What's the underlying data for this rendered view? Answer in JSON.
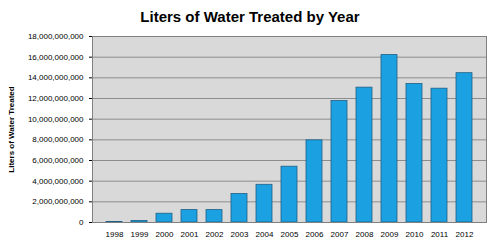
{
  "chart_data": {
    "type": "bar",
    "title": "Liters of Water Treated by Year",
    "y_label": "Liters of Water Treated",
    "categories": [
      "1998",
      "1999",
      "2000",
      "2001",
      "2002",
      "2003",
      "2004",
      "2005",
      "2006",
      "2007",
      "2008",
      "2009",
      "2010",
      "2011",
      "2012"
    ],
    "values": [
      50000000,
      150000000,
      850000000,
      1200000000,
      1200000000,
      2750000000,
      3650000000,
      5400000000,
      7950000000,
      11750000000,
      13050000000,
      16200000000,
      13400000000,
      12950000000,
      14450000000
    ],
    "color": "#1ba1e2",
    "ylim": [
      0,
      18000000000
    ],
    "yticks": [
      0,
      {
        "value": 2000000000,
        "label": "2,000,000,000"
      },
      {
        "value": 4000000000,
        "label": "4,000,000,000"
      },
      {
        "value": 6000000000,
        "label": "6,000,000,000"
      },
      {
        "value": 8000000000,
        "label": "8,000,000,000"
      },
      {
        "value": 10000000000,
        "label": "10,000,000,000"
      },
      {
        "value": 12000000000,
        "label": "12,000,000,000"
      },
      {
        "value": 14000000000,
        "label": "14,000,000,000"
      },
      {
        "value": 16000000000,
        "label": "16,000,000,000"
      },
      {
        "value": 18000000000,
        "label": "18,000,000,000"
      }
    ],
    "grid": true
  }
}
